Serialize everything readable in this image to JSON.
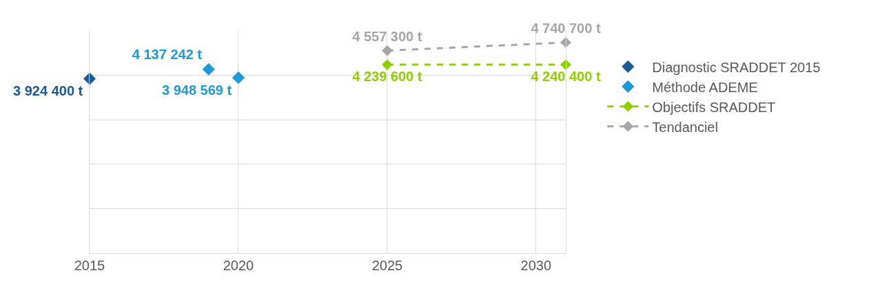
{
  "chart_data": {
    "type": "scatter",
    "xlim": [
      2015,
      2031
    ],
    "xticks": [
      2015,
      2020,
      2025,
      2030
    ],
    "ylim": [
      0,
      5000000
    ],
    "tick_labels": "x",
    "grid": true,
    "legend": "right",
    "marker": "diamond",
    "series": [
      {
        "name": "Diagnostic SRADDET 2015",
        "color": "#1c5a94",
        "x": [
          2015
        ],
        "values": [
          3924400
        ],
        "value_labels": [
          "3 924 400 t"
        ]
      },
      {
        "name": "Méthode ADEME",
        "color": "#1e9ad6",
        "x": [
          2019,
          2020
        ],
        "values": [
          4137242,
          3948569
        ],
        "value_labels": [
          "4 137 242 t",
          "3 948 569 t"
        ]
      },
      {
        "name": "Objectifs SRADDET",
        "type": "line",
        "line_style": "dashed",
        "color": "#8fce00",
        "x": [
          2025,
          2031
        ],
        "values": [
          4239600,
          4240400
        ],
        "value_labels": [
          "4 239 600 t",
          "4 240 400 t"
        ]
      },
      {
        "name": "Tendanciel",
        "type": "line",
        "line_style": "dashed",
        "color": "#a6a6a6",
        "x": [
          2025,
          2031
        ],
        "values": [
          4557300,
          4740700
        ],
        "value_labels": [
          "4 557 300 t",
          "4 740 700 t"
        ]
      }
    ]
  }
}
